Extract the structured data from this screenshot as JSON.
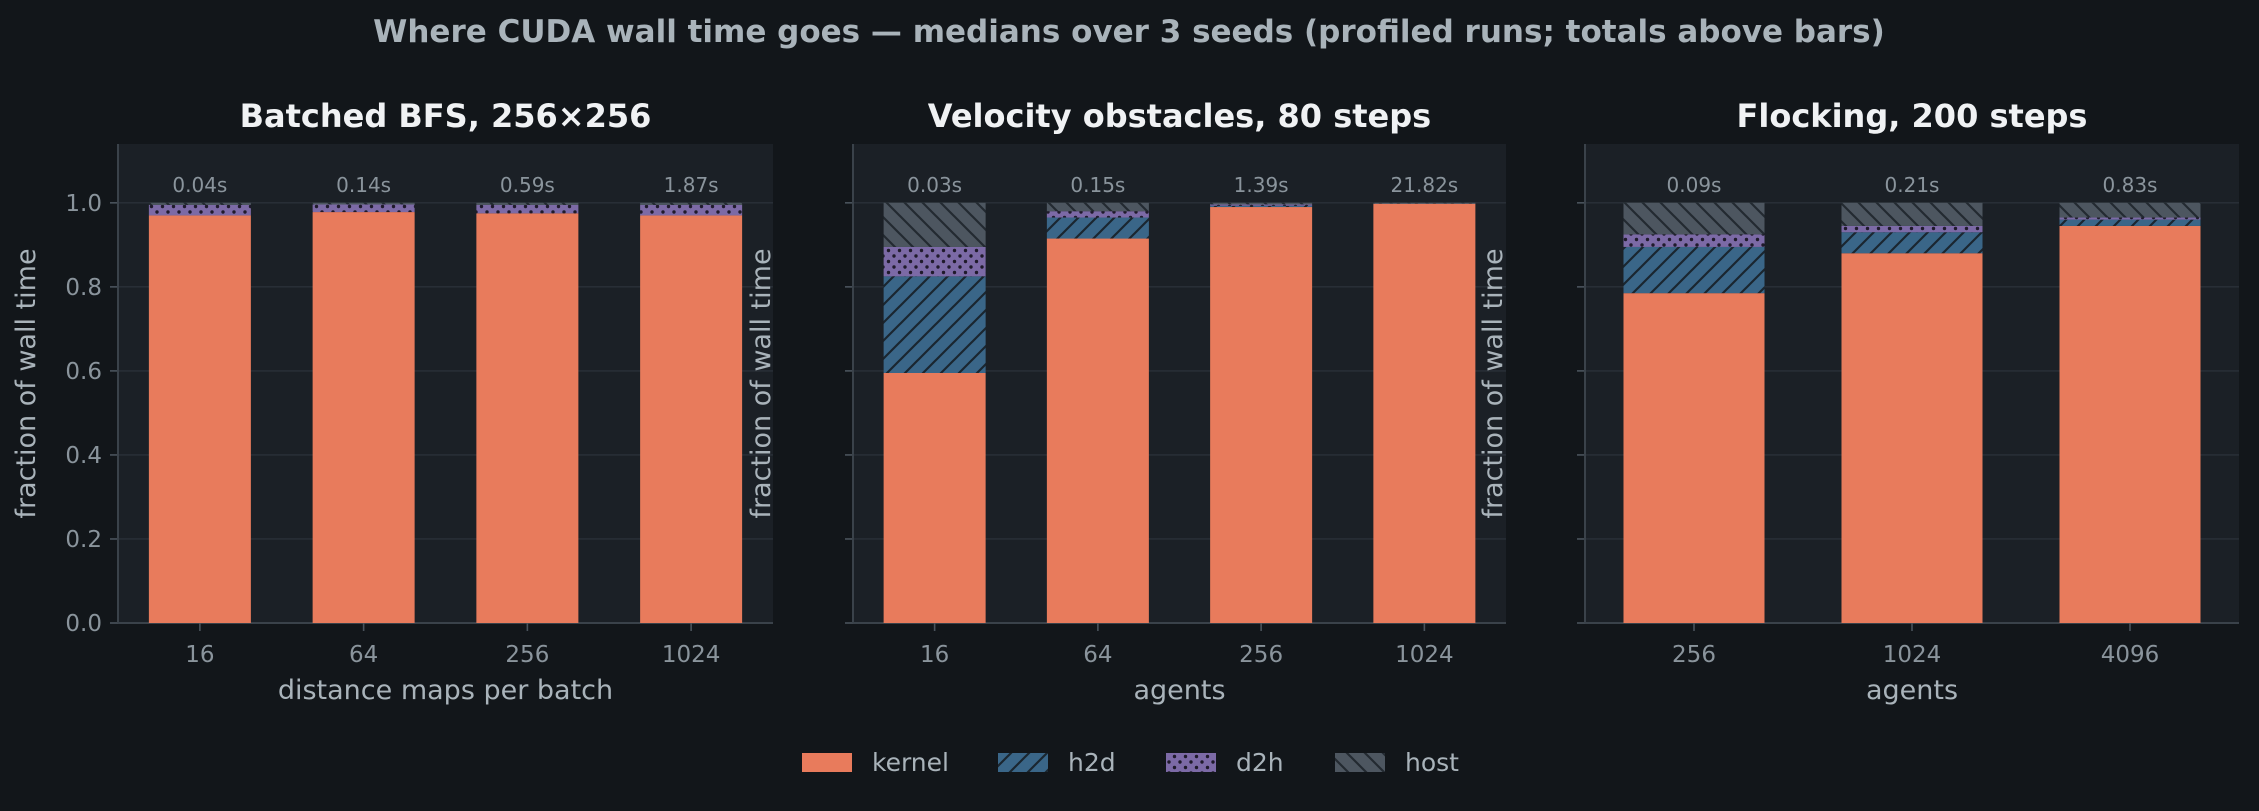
{
  "figure": {
    "title": "Where CUDA wall time goes — medians over 3 seeds (profiled runs; totals above bars)"
  },
  "colors": {
    "background": "#12161a",
    "panel": "#1b2026",
    "kernel": "#e87b5c",
    "h2d": "#3a6688",
    "d2h": "#7c6aa6",
    "host": "#4d5660"
  },
  "legend": {
    "placement": "bottom-center",
    "entries": [
      {
        "key": "kernel",
        "label": "kernel",
        "pattern": "solid"
      },
      {
        "key": "h2d",
        "label": "h2d",
        "pattern": "hatch-forward"
      },
      {
        "key": "d2h",
        "label": "d2h",
        "pattern": "dots"
      },
      {
        "key": "host",
        "label": "host",
        "pattern": "hatch-back"
      }
    ]
  },
  "chart_data": [
    {
      "type": "bar",
      "stacked": true,
      "title": "Batched BFS, 256×256",
      "xlabel": "distance maps per batch",
      "ylabel": "fraction of wall time",
      "ylim": [
        0,
        1.14
      ],
      "yticks": [
        "0.0",
        "0.2",
        "0.4",
        "0.6",
        "0.8",
        "1.0"
      ],
      "ytick_labels_visible": true,
      "grid": true,
      "categories": [
        "16",
        "64",
        "256",
        "1024"
      ],
      "totals": [
        "0.04s",
        "0.14s",
        "0.59s",
        "1.87s"
      ],
      "series": [
        {
          "name": "kernel",
          "values": [
            0.97,
            0.978,
            0.975,
            0.97
          ]
        },
        {
          "name": "h2d",
          "values": [
            0.0,
            0.0,
            0.0,
            0.0
          ]
        },
        {
          "name": "d2h",
          "values": [
            0.025,
            0.018,
            0.02,
            0.025
          ]
        },
        {
          "name": "host",
          "values": [
            0.005,
            0.004,
            0.005,
            0.005
          ]
        }
      ]
    },
    {
      "type": "bar",
      "stacked": true,
      "title": "Velocity obstacles, 80 steps",
      "xlabel": "agents",
      "ylabel": "fraction of wall time",
      "ylim": [
        0,
        1.14
      ],
      "yticks": [
        "0.0",
        "0.2",
        "0.4",
        "0.6",
        "0.8",
        "1.0"
      ],
      "ytick_labels_visible": false,
      "grid": true,
      "categories": [
        "16",
        "64",
        "256",
        "1024"
      ],
      "totals": [
        "0.03s",
        "0.15s",
        "1.39s",
        "21.82s"
      ],
      "series": [
        {
          "name": "kernel",
          "values": [
            0.595,
            0.915,
            0.99,
            0.998
          ]
        },
        {
          "name": "h2d",
          "values": [
            0.23,
            0.05,
            0.003,
            0.001
          ]
        },
        {
          "name": "d2h",
          "values": [
            0.07,
            0.015,
            0.003,
            0.0
          ]
        },
        {
          "name": "host",
          "values": [
            0.105,
            0.02,
            0.004,
            0.001
          ]
        }
      ]
    },
    {
      "type": "bar",
      "stacked": true,
      "title": "Flocking, 200 steps",
      "xlabel": "agents",
      "ylabel": "fraction of wall time",
      "ylim": [
        0,
        1.14
      ],
      "yticks": [
        "0.0",
        "0.2",
        "0.4",
        "0.6",
        "0.8",
        "1.0"
      ],
      "ytick_labels_visible": false,
      "grid": true,
      "categories": [
        "256",
        "1024",
        "4096"
      ],
      "totals": [
        "0.09s",
        "0.21s",
        "0.83s"
      ],
      "series": [
        {
          "name": "kernel",
          "values": [
            0.785,
            0.88,
            0.945
          ]
        },
        {
          "name": "h2d",
          "values": [
            0.11,
            0.05,
            0.015
          ]
        },
        {
          "name": "d2h",
          "values": [
            0.03,
            0.015,
            0.005
          ]
        },
        {
          "name": "host",
          "values": [
            0.075,
            0.055,
            0.035
          ]
        }
      ]
    }
  ]
}
